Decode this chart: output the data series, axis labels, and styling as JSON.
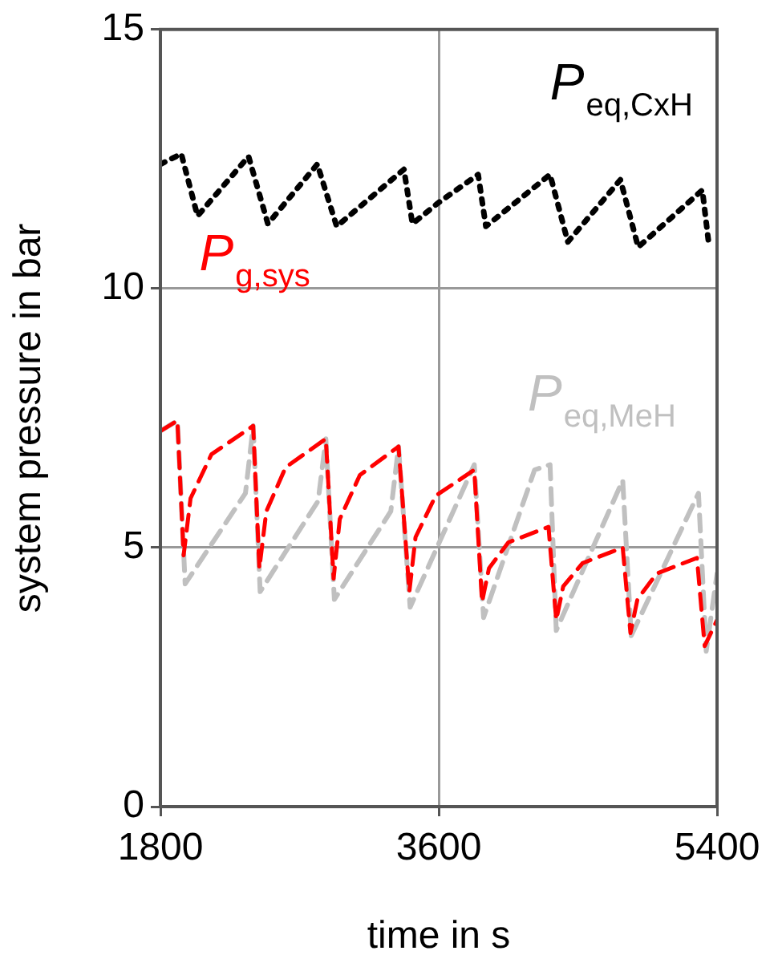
{
  "chart_data": {
    "type": "line",
    "xlabel": "time in s",
    "ylabel": "system pressure in bar",
    "xlim": [
      1800,
      5400
    ],
    "xticks": [
      1800,
      3600,
      5400
    ],
    "ylim": [
      0,
      15
    ],
    "yticks": [
      0,
      5,
      10,
      15
    ],
    "grid": true,
    "legend": false,
    "marker": "none",
    "series": [
      {
        "name": "P$_{eq,CxH}$",
        "color": "#000000",
        "line_style": "dotted",
        "x": [
          1800,
          1935,
          2040,
          2370,
          2495,
          2815,
          2940,
          3375,
          3430,
          3595,
          3855,
          3905,
          4320,
          4435,
          4775,
          4890,
          5305,
          5345
        ],
        "values": [
          12.4,
          12.6,
          11.4,
          12.55,
          11.25,
          12.4,
          11.2,
          12.3,
          11.25,
          11.65,
          12.2,
          11.2,
          12.2,
          10.9,
          12.1,
          10.8,
          11.9,
          10.9
        ]
      },
      {
        "name": "P$_{eq,MeH}$",
        "color": "#c0c0c0",
        "line_style": "dashed",
        "x": [
          1800,
          1910,
          1960,
          2350,
          2400,
          2445,
          2820,
          2870,
          2925,
          3290,
          3340,
          3415,
          3830,
          3890,
          4220,
          4320,
          4360,
          4790,
          4845,
          5280,
          5330,
          5400
        ],
        "values": [
          7.25,
          7.45,
          4.3,
          6.05,
          7.35,
          4.15,
          5.9,
          7.1,
          4.0,
          5.7,
          6.95,
          3.85,
          6.6,
          3.65,
          6.5,
          6.6,
          3.4,
          6.3,
          3.3,
          6.05,
          3.0,
          4.5
        ]
      },
      {
        "name": "P$_{g,sys}$",
        "color": "#ff0000",
        "line_style": "dashed",
        "x": [
          1800,
          1910,
          1950,
          1995,
          2130,
          2400,
          2440,
          2485,
          2610,
          2870,
          2920,
          2960,
          3090,
          3340,
          3410,
          3450,
          3580,
          3830,
          3880,
          3925,
          4050,
          4310,
          4360,
          4405,
          4530,
          4790,
          4840,
          4885,
          5010,
          5270,
          5320,
          5400
        ],
        "values": [
          7.25,
          7.45,
          4.85,
          5.95,
          6.8,
          7.35,
          4.6,
          5.7,
          6.55,
          7.1,
          4.4,
          5.55,
          6.4,
          6.95,
          4.15,
          5.2,
          6.0,
          6.5,
          3.95,
          4.6,
          5.1,
          5.4,
          3.6,
          4.25,
          4.7,
          5.0,
          3.35,
          4.0,
          4.5,
          4.8,
          3.1,
          3.6
        ]
      }
    ]
  }
}
